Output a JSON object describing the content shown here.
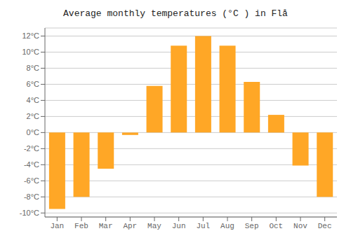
{
  "chart_data": {
    "type": "bar",
    "title": "Average monthly temperatures (°C ) in Flå",
    "categories": [
      "Jan",
      "Feb",
      "Mar",
      "Apr",
      "May",
      "Jun",
      "Jul",
      "Aug",
      "Sep",
      "Oct",
      "Nov",
      "Dec"
    ],
    "values": [
      -9.5,
      -8.0,
      -4.5,
      -0.3,
      5.8,
      10.8,
      12.0,
      10.8,
      6.3,
      2.2,
      -4.1,
      -8.0
    ],
    "color": "#FFA726",
    "ylim": [
      -10.5,
      13
    ],
    "yticks": [
      {
        "value": -10,
        "label": "-10°C"
      },
      {
        "value": -8,
        "label": "-8°C"
      },
      {
        "value": -6,
        "label": "-6°C"
      },
      {
        "value": -4,
        "label": "-4°C"
      },
      {
        "value": -2,
        "label": "-2°C"
      },
      {
        "value": 0,
        "label": "0°C"
      },
      {
        "value": 2,
        "label": "2°C"
      },
      {
        "value": 4,
        "label": "4°C"
      },
      {
        "value": 6,
        "label": "6°C"
      },
      {
        "value": 8,
        "label": "8°C"
      },
      {
        "value": 10,
        "label": "10°C"
      },
      {
        "value": 12,
        "label": "12°C"
      }
    ],
    "grid": true
  }
}
